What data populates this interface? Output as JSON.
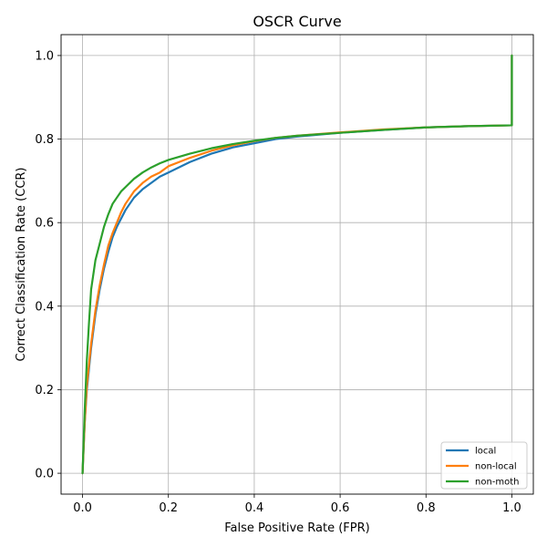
{
  "chart_data": {
    "type": "line",
    "title": "OSCR Curve",
    "xlabel": "False Positive Rate (FPR)",
    "ylabel": "Correct Classification Rate (CCR)",
    "xlim": [
      -0.05,
      1.05
    ],
    "ylim": [
      -0.05,
      1.05
    ],
    "xticks": [
      0.0,
      0.2,
      0.4,
      0.6,
      0.8,
      1.0
    ],
    "yticks": [
      0.0,
      0.2,
      0.4,
      0.6,
      0.8,
      1.0
    ],
    "xtick_labels": [
      "0.0",
      "0.2",
      "0.4",
      "0.6",
      "0.8",
      "1.0"
    ],
    "ytick_labels": [
      "0.0",
      "0.2",
      "0.4",
      "0.6",
      "0.8",
      "1.0"
    ],
    "grid": true,
    "legend_position": "bottom-right",
    "series": [
      {
        "name": "local",
        "color": "#1f77b4",
        "x": [
          0.0,
          0.005,
          0.01,
          0.02,
          0.03,
          0.04,
          0.05,
          0.06,
          0.07,
          0.08,
          0.09,
          0.1,
          0.12,
          0.14,
          0.16,
          0.18,
          0.2,
          0.25,
          0.3,
          0.35,
          0.4,
          0.45,
          0.5,
          0.6,
          0.7,
          0.8,
          0.9,
          1.0,
          1.0
        ],
        "y": [
          0.0,
          0.12,
          0.2,
          0.3,
          0.38,
          0.44,
          0.49,
          0.53,
          0.565,
          0.59,
          0.61,
          0.63,
          0.66,
          0.68,
          0.695,
          0.71,
          0.72,
          0.745,
          0.765,
          0.78,
          0.79,
          0.8,
          0.806,
          0.815,
          0.822,
          0.828,
          0.831,
          0.833,
          1.0
        ]
      },
      {
        "name": "non-local",
        "color": "#ff7f0e",
        "x": [
          0.0,
          0.005,
          0.01,
          0.02,
          0.03,
          0.04,
          0.05,
          0.06,
          0.07,
          0.08,
          0.09,
          0.1,
          0.12,
          0.14,
          0.16,
          0.18,
          0.2,
          0.25,
          0.3,
          0.35,
          0.4,
          0.45,
          0.5,
          0.6,
          0.7,
          0.8,
          0.9,
          1.0,
          1.0
        ],
        "y": [
          0.0,
          0.12,
          0.21,
          0.31,
          0.39,
          0.45,
          0.5,
          0.545,
          0.575,
          0.6,
          0.625,
          0.645,
          0.675,
          0.695,
          0.71,
          0.72,
          0.735,
          0.755,
          0.772,
          0.785,
          0.795,
          0.803,
          0.808,
          0.816,
          0.823,
          0.828,
          0.831,
          0.833,
          1.0
        ]
      },
      {
        "name": "non-moth",
        "color": "#2ca02c",
        "x": [
          0.0,
          0.005,
          0.01,
          0.015,
          0.02,
          0.03,
          0.04,
          0.05,
          0.06,
          0.07,
          0.08,
          0.09,
          0.1,
          0.12,
          0.14,
          0.16,
          0.18,
          0.2,
          0.25,
          0.3,
          0.35,
          0.4,
          0.45,
          0.5,
          0.6,
          0.7,
          0.8,
          0.9,
          1.0,
          1.0
        ],
        "y": [
          0.0,
          0.15,
          0.27,
          0.36,
          0.44,
          0.51,
          0.55,
          0.59,
          0.62,
          0.645,
          0.66,
          0.675,
          0.685,
          0.705,
          0.72,
          0.732,
          0.742,
          0.75,
          0.765,
          0.778,
          0.788,
          0.796,
          0.803,
          0.808,
          0.815,
          0.822,
          0.828,
          0.831,
          0.833,
          1.0
        ]
      }
    ]
  }
}
